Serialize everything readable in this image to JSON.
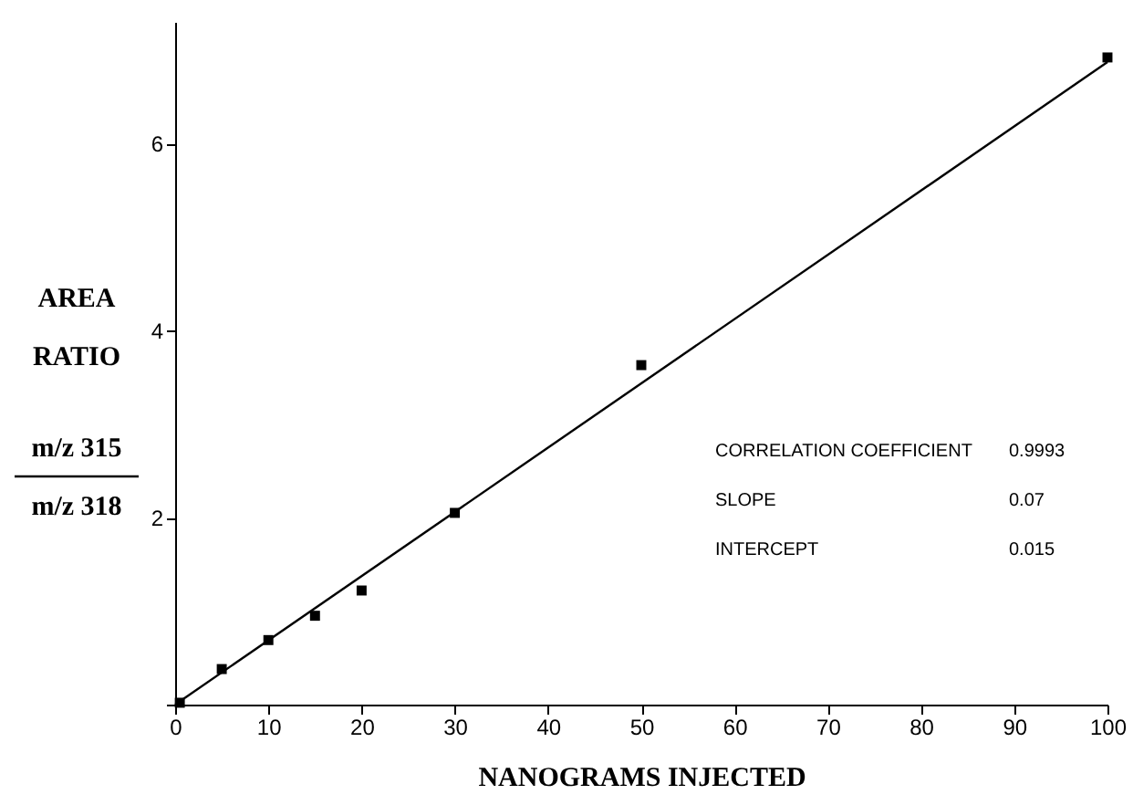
{
  "chart_data": {
    "type": "scatter",
    "xlabel": "NANOGRAMS INJECTED",
    "ylabel": "AREA\nRATIO\nm/z 315\nm/z 318",
    "xlim": [
      0,
      100
    ],
    "xticks": [
      0,
      10,
      20,
      30,
      40,
      50,
      60,
      70,
      80,
      90,
      100
    ],
    "ylim": [
      0,
      7.3
    ],
    "yticks": [
      {
        "value": 0,
        "label": null
      },
      2,
      4,
      6
    ],
    "grid": false,
    "series": [
      {
        "marker": "square",
        "color": "#000000",
        "x": [
          0.5,
          5,
          10,
          15,
          20,
          30,
          50,
          100
        ],
        "values": [
          0.02,
          0.38,
          0.69,
          0.95,
          1.22,
          2.05,
          3.63,
          6.92
        ]
      },
      {
        "type": "line",
        "line_style": "solid",
        "color": "#000000",
        "x": [
          0,
          100
        ],
        "values": [
          0,
          6.87
        ]
      }
    ],
    "annotations": [
      "CORRELATION COEFFICIENT",
      "0.9993",
      "SLOPE",
      "0.07",
      "INTERCEPT",
      "0.015"
    ]
  }
}
